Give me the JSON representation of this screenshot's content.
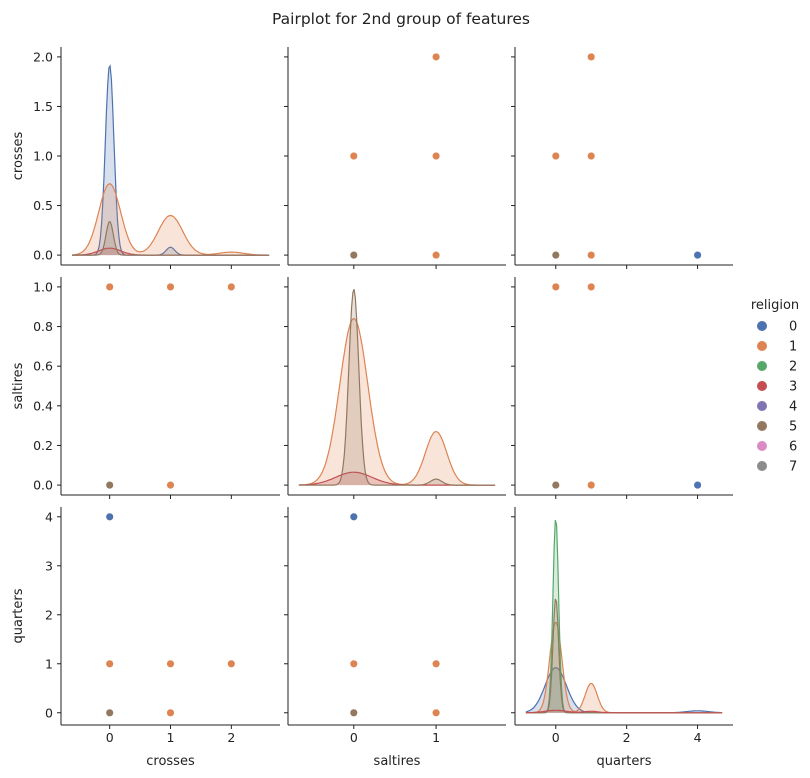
{
  "chart_data": {
    "type": "scatter",
    "title": "Pairplot for 2nd group of features",
    "variables": [
      "crosses",
      "saltires",
      "quarters"
    ],
    "legend": {
      "title": "religion",
      "placement": "right",
      "labels": [
        "0",
        "1",
        "2",
        "3",
        "4",
        "5",
        "6",
        "7"
      ]
    },
    "colors": {
      "0": "#4c72b0",
      "1": "#dd8452",
      "2": "#55a868",
      "3": "#c44e52",
      "4": "#8172b3",
      "5": "#937860",
      "6": "#da8bc3",
      "7": "#8c8c8c"
    },
    "axes": {
      "crosses": {
        "lim": [
          -0.8,
          2.8
        ],
        "ticks": [
          0,
          1,
          2
        ],
        "diag_ticks": [
          0.0,
          0.5,
          1.0,
          1.5,
          2.0
        ]
      },
      "saltires": {
        "lim": [
          -0.8,
          1.85
        ],
        "ticks": [
          0,
          1
        ],
        "diag_ticks": [
          0.0,
          0.2,
          0.4,
          0.6,
          0.8,
          1.0
        ]
      },
      "quarters": {
        "lim": [
          -1.15,
          5.0
        ],
        "ticks": [
          0,
          2,
          4
        ],
        "diag_ticks": [
          0,
          1,
          2,
          3,
          4
        ]
      }
    },
    "scatter": {
      "crosses-saltires": [
        {
          "religion": "1",
          "x": 0,
          "y": 1
        },
        {
          "religion": "1",
          "x": 1,
          "y": 1
        },
        {
          "religion": "1",
          "x": 2,
          "y": 1
        },
        {
          "religion": "1",
          "x": 1,
          "y": 0
        },
        {
          "religion": "5",
          "x": 0,
          "y": 0
        }
      ],
      "crosses-quarters": [
        {
          "religion": "0",
          "x": 0,
          "y": 4
        },
        {
          "religion": "1",
          "x": 0,
          "y": 1
        },
        {
          "religion": "1",
          "x": 1,
          "y": 1
        },
        {
          "religion": "1",
          "x": 2,
          "y": 1
        },
        {
          "religion": "1",
          "x": 1,
          "y": 0
        },
        {
          "religion": "5",
          "x": 0,
          "y": 0
        }
      ],
      "saltires-crosses": [
        {
          "religion": "1",
          "x": 1,
          "y": 2
        },
        {
          "religion": "1",
          "x": 0,
          "y": 1
        },
        {
          "religion": "1",
          "x": 1,
          "y": 1
        },
        {
          "religion": "1",
          "x": 1,
          "y": 0
        },
        {
          "religion": "5",
          "x": 0,
          "y": 0
        }
      ],
      "saltires-quarters": [
        {
          "religion": "0",
          "x": 0,
          "y": 4
        },
        {
          "religion": "1",
          "x": 0,
          "y": 1
        },
        {
          "religion": "1",
          "x": 1,
          "y": 1
        },
        {
          "religion": "1",
          "x": 1,
          "y": 0
        },
        {
          "religion": "5",
          "x": 0,
          "y": 0
        }
      ],
      "quarters-crosses": [
        {
          "religion": "1",
          "x": 1,
          "y": 2
        },
        {
          "religion": "1",
          "x": 0,
          "y": 1
        },
        {
          "religion": "1",
          "x": 1,
          "y": 1
        },
        {
          "religion": "1",
          "x": 1,
          "y": 0
        },
        {
          "religion": "0",
          "x": 4,
          "y": 0
        },
        {
          "religion": "5",
          "x": 0,
          "y": 0
        }
      ],
      "quarters-saltires": [
        {
          "religion": "1",
          "x": 0,
          "y": 1
        },
        {
          "religion": "1",
          "x": 1,
          "y": 1
        },
        {
          "religion": "1",
          "x": 1,
          "y": 0
        },
        {
          "religion": "0",
          "x": 4,
          "y": 0
        },
        {
          "religion": "5",
          "x": 0,
          "y": 0
        }
      ]
    },
    "kde": {
      "crosses": [
        {
          "religion": "0",
          "components": [
            [
              1.92,
              0,
              0.07
            ],
            [
              0.08,
              1,
              0.07
            ]
          ]
        },
        {
          "religion": "1",
          "components": [
            [
              0.72,
              0,
              0.18
            ],
            [
              0.4,
              1,
              0.2
            ],
            [
              0.03,
              2,
              0.2
            ]
          ]
        },
        {
          "religion": "3",
          "components": [
            [
              0.07,
              0,
              0.18
            ]
          ]
        },
        {
          "religion": "5",
          "components": [
            [
              0.34,
              0,
              0.06
            ]
          ]
        }
      ],
      "saltires": [
        {
          "religion": "1",
          "components": [
            [
              0.84,
              0,
              0.17
            ],
            [
              0.27,
              1,
              0.13
            ]
          ]
        },
        {
          "religion": "3",
          "components": [
            [
              0.065,
              0,
              0.22
            ]
          ]
        },
        {
          "religion": "5",
          "components": [
            [
              0.99,
              0,
              0.06
            ],
            [
              0.03,
              1,
              0.07
            ]
          ]
        }
      ],
      "quarters": [
        {
          "religion": "0",
          "components": [
            [
              0.92,
              0,
              0.3
            ],
            [
              0.04,
              4,
              0.3
            ]
          ]
        },
        {
          "religion": "1",
          "components": [
            [
              1.85,
              0,
              0.17
            ],
            [
              0.6,
              1,
              0.17
            ]
          ]
        },
        {
          "religion": "2",
          "components": [
            [
              3.98,
              0,
              0.08
            ]
          ]
        },
        {
          "religion": "5",
          "components": [
            [
              2.35,
              0,
              0.08
            ]
          ]
        },
        {
          "religion": "3",
          "components": [
            [
              0.05,
              0,
              0.3
            ],
            [
              0.03,
              1,
              0.2
            ]
          ]
        }
      ]
    }
  }
}
